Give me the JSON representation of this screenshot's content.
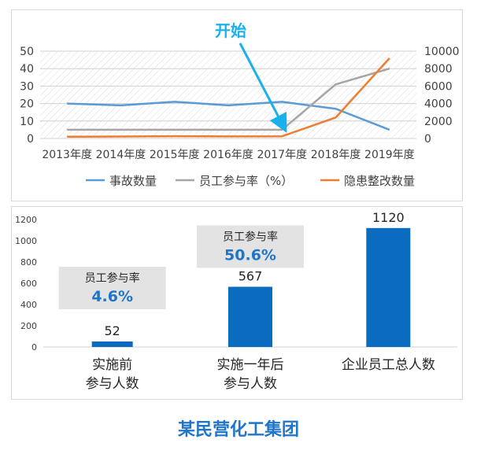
{
  "chart_data": [
    {
      "type": "line",
      "categories": [
        "2013年度",
        "2014年度",
        "2015年度",
        "2016年度",
        "2017年度",
        "2018年度",
        "2019年度"
      ],
      "y_left_ticks": [
        "0",
        "10",
        "20",
        "30",
        "40",
        "50"
      ],
      "y_right_ticks": [
        "0",
        "2000",
        "4000",
        "6000",
        "8000",
        "10000"
      ],
      "ylim_left": [
        0,
        50
      ],
      "ylim_right": [
        0,
        10000
      ],
      "series": [
        {
          "name": "事故数量",
          "axis": "left",
          "color": "#5b9bd5",
          "values": [
            20,
            19,
            21,
            19,
            21,
            17,
            5
          ]
        },
        {
          "name": "员工参与率（%）",
          "axis": "left",
          "color": "#a5a5a5",
          "values": [
            5,
            5,
            5,
            5,
            5,
            31,
            40
          ]
        },
        {
          "name": "隐患整改数量",
          "axis": "right",
          "color": "#ed7d31",
          "values": [
            200,
            220,
            260,
            240,
            250,
            2400,
            9200
          ]
        }
      ],
      "annotation": {
        "text": "开始",
        "color": "#1ab0ec",
        "target_category": "2017年度"
      },
      "legend_position": "bottom",
      "grid": true
    },
    {
      "type": "bar",
      "categories": [
        "实施前\n参与人数",
        "实施一年后\n参与人数",
        "企业员工总人数"
      ],
      "values": [
        52,
        567,
        1120
      ],
      "data_labels": [
        "52",
        "567",
        "1120"
      ],
      "bar_color": "#0b6cbf",
      "ylim": [
        0,
        1200
      ],
      "y_ticks": [
        "0",
        "200",
        "400",
        "600",
        "800",
        "1000",
        "1200"
      ],
      "callouts": [
        {
          "label": "员工参与率",
          "value": "4.6%"
        },
        {
          "label": "员工参与率",
          "value": "50.6%"
        }
      ]
    }
  ],
  "footer": {
    "title": "某民营化工集团"
  }
}
